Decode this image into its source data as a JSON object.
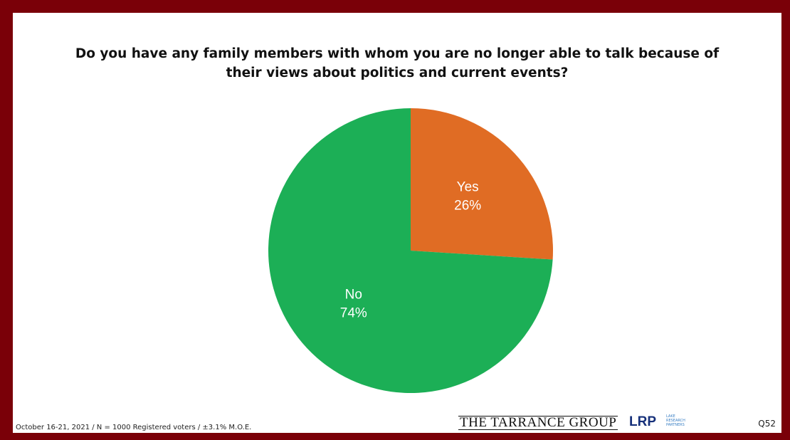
{
  "chart_data": {
    "type": "pie",
    "title": "Do you have any family members with whom you are no longer able to talk because of their views about politics and current events?",
    "categories": [
      "Yes",
      "No"
    ],
    "values": [
      26,
      74
    ],
    "value_labels": [
      "26%",
      "74%"
    ],
    "colors": [
      "#e06c24",
      "#1caf56"
    ]
  },
  "footer": {
    "note": "October 16-21, 2021 / N = 1000 Registered voters / ±3.1% M.O.E.",
    "source_logo": "THE TARRANCE GROUP",
    "partner_logo": "LRP",
    "partner_name": "LAKE RESEARCH PARTNERS",
    "page_id": "Q52"
  }
}
